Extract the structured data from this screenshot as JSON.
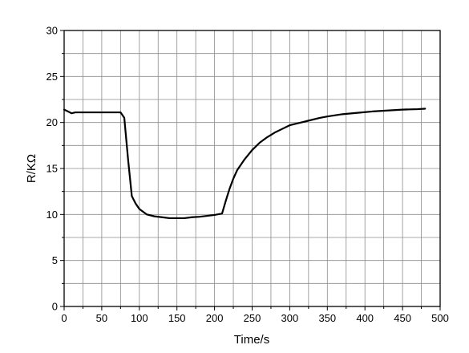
{
  "chart_data": {
    "type": "line",
    "title": "",
    "xlabel": "Time/s",
    "ylabel": "R/KΩ",
    "xlim": [
      0,
      500
    ],
    "ylim": [
      0,
      30
    ],
    "x_ticks": [
      0,
      50,
      100,
      150,
      200,
      250,
      300,
      350,
      400,
      450,
      500
    ],
    "y_ticks": [
      0,
      5,
      10,
      15,
      20,
      25,
      30
    ],
    "x_tick_labels": [
      "0",
      "50",
      "100",
      "150",
      "200",
      "250",
      "300",
      "350",
      "400",
      "450",
      "500"
    ],
    "y_tick_labels": [
      "0",
      "5",
      "10",
      "15",
      "20",
      "25",
      "30"
    ],
    "grid": true,
    "x_grid_step": 25,
    "y_grid_step": 2.5,
    "series": [
      {
        "color": "#000000",
        "x": [
          0,
          5,
          10,
          15,
          20,
          30,
          40,
          50,
          60,
          70,
          75,
          80,
          85,
          90,
          95,
          100,
          110,
          120,
          130,
          140,
          150,
          160,
          170,
          180,
          190,
          200,
          210,
          215,
          220,
          225,
          230,
          240,
          250,
          260,
          270,
          280,
          290,
          300,
          320,
          340,
          350,
          370,
          390,
          410,
          430,
          450,
          470,
          480
        ],
        "y": [
          21.4,
          21.2,
          21.0,
          21.1,
          21.1,
          21.1,
          21.1,
          21.1,
          21.1,
          21.1,
          21.1,
          20.5,
          16.0,
          12.0,
          11.2,
          10.6,
          10.0,
          9.8,
          9.7,
          9.6,
          9.6,
          9.6,
          9.7,
          9.75,
          9.85,
          9.95,
          10.1,
          11.5,
          12.8,
          13.9,
          14.8,
          16.0,
          17.0,
          17.8,
          18.4,
          18.9,
          19.3,
          19.7,
          20.1,
          20.5,
          20.65,
          20.9,
          21.05,
          21.2,
          21.3,
          21.4,
          21.45,
          21.5
        ]
      }
    ]
  }
}
